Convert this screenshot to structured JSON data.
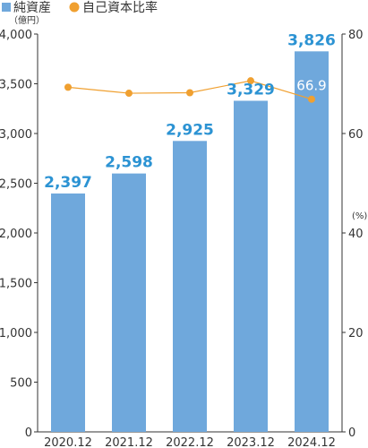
{
  "chart_data": {
    "type": "bar",
    "categories": [
      "2020.12",
      "2021.12",
      "2022.12",
      "2023.12",
      "2024.12"
    ],
    "series": [
      {
        "name": "純資産",
        "type": "bar",
        "axis": "left",
        "values": [
          2397,
          2598,
          2925,
          3329,
          3826
        ],
        "labels": [
          "2,397",
          "2,598",
          "2,925",
          "3,329",
          "3,826"
        ],
        "color": "#6FA8DC",
        "label_color": "#2C93D3"
      },
      {
        "name": "自己資本比率",
        "type": "line",
        "axis": "right",
        "values": [
          69.3,
          68.1,
          68.2,
          70.6,
          66.9
        ],
        "labels": [
          "69.3",
          "68.1",
          "68.2",
          "70.6",
          "66.9"
        ],
        "color": "#F0A030",
        "label_color": "#FFFFFF"
      }
    ],
    "y_left": {
      "unit": "（億円）",
      "ylim": [
        0,
        4000
      ],
      "ticks": [
        0,
        500,
        1000,
        1500,
        2000,
        2500,
        3000,
        3500,
        4000
      ],
      "tick_labels": [
        "0",
        "500",
        "1,000",
        "1,500",
        "2,000",
        "2,500",
        "3,000",
        "3,500",
        "4,000"
      ]
    },
    "y_right": {
      "unit": "(%)",
      "ylim": [
        0,
        80
      ],
      "ticks": [
        0,
        20,
        40,
        60,
        80
      ],
      "tick_labels": [
        "0",
        "20",
        "40",
        "60",
        "80"
      ]
    },
    "grid": false,
    "legend": "top-left"
  }
}
